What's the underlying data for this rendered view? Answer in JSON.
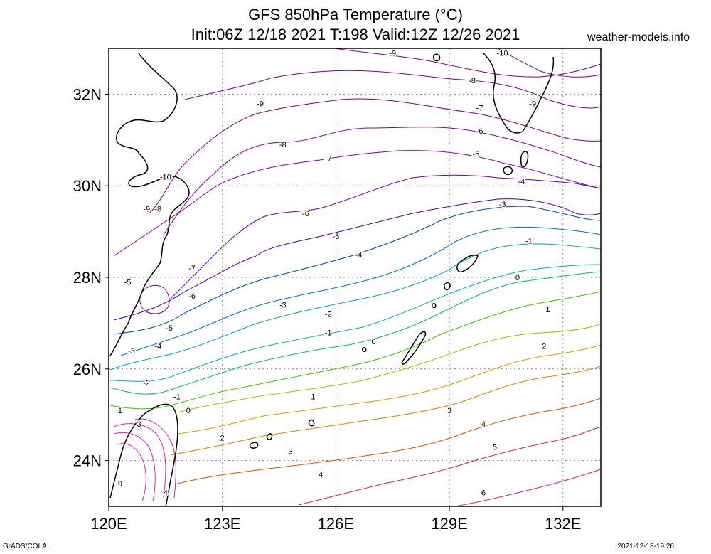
{
  "title": {
    "line1": "GFS 850hPa Temperature (°C)",
    "line2": "Init:06Z 12/18 2021 T:198 Valid:12Z 12/26 2021"
  },
  "site": "weather-models.info",
  "footer": {
    "left": "GrADS/COLA",
    "right": "2021-12-18-19:26"
  },
  "map": {
    "lon_range": [
      120,
      133
    ],
    "lat_range": [
      23,
      33
    ],
    "lon_ticks": [
      "120E",
      "123E",
      "126E",
      "129E",
      "132E"
    ],
    "lat_ticks": [
      "24N",
      "26N",
      "28N",
      "30N",
      "32N"
    ],
    "grid": "dotted",
    "contour_interval_c": 1,
    "contour_labels": [
      {
        "text": "-9",
        "lon": 127.5,
        "lat": 32.9
      },
      {
        "text": "-10",
        "lon": 130.4,
        "lat": 32.9
      },
      {
        "text": "-8",
        "lon": 129.6,
        "lat": 32.3
      },
      {
        "text": "-9",
        "lon": 131.2,
        "lat": 31.8
      },
      {
        "text": "-9",
        "lon": 124.0,
        "lat": 31.8
      },
      {
        "text": "-7",
        "lon": 129.8,
        "lat": 31.7
      },
      {
        "text": "-6",
        "lon": 129.8,
        "lat": 31.2
      },
      {
        "text": "-8",
        "lon": 124.6,
        "lat": 30.9
      },
      {
        "text": "-5",
        "lon": 129.7,
        "lat": 30.7
      },
      {
        "text": "-7",
        "lon": 125.8,
        "lat": 30.6
      },
      {
        "text": "-10",
        "lon": 121.5,
        "lat": 30.2
      },
      {
        "text": "-4",
        "lon": 130.9,
        "lat": 30.1
      },
      {
        "text": "-3",
        "lon": 130.4,
        "lat": 29.6
      },
      {
        "text": "-9",
        "lon": 121.0,
        "lat": 29.5
      },
      {
        "text": "-8",
        "lon": 121.3,
        "lat": 29.5
      },
      {
        "text": "-6",
        "lon": 125.2,
        "lat": 29.4
      },
      {
        "text": "-5",
        "lon": 126.0,
        "lat": 28.9
      },
      {
        "text": "-1",
        "lon": 131.1,
        "lat": 28.8
      },
      {
        "text": "-4",
        "lon": 126.6,
        "lat": 28.5
      },
      {
        "text": "-7",
        "lon": 122.2,
        "lat": 28.2
      },
      {
        "text": "0",
        "lon": 130.8,
        "lat": 28.0
      },
      {
        "text": "-5",
        "lon": 120.5,
        "lat": 27.9
      },
      {
        "text": "-6",
        "lon": 122.2,
        "lat": 27.6
      },
      {
        "text": "-3",
        "lon": 124.6,
        "lat": 27.4
      },
      {
        "text": "1",
        "lon": 131.6,
        "lat": 27.3
      },
      {
        "text": "-2",
        "lon": 125.8,
        "lat": 27.2
      },
      {
        "text": "-5",
        "lon": 121.6,
        "lat": 26.9
      },
      {
        "text": "-1",
        "lon": 125.8,
        "lat": 26.8
      },
      {
        "text": "0",
        "lon": 127.0,
        "lat": 26.6
      },
      {
        "text": "2",
        "lon": 131.5,
        "lat": 26.5
      },
      {
        "text": "-4",
        "lon": 121.3,
        "lat": 26.5
      },
      {
        "text": "-3",
        "lon": 120.6,
        "lat": 26.4
      },
      {
        "text": "-2",
        "lon": 121.0,
        "lat": 25.7
      },
      {
        "text": "-1",
        "lon": 121.8,
        "lat": 25.4
      },
      {
        "text": "1",
        "lon": 125.4,
        "lat": 25.4
      },
      {
        "text": "0",
        "lon": 122.1,
        "lat": 25.1
      },
      {
        "text": "3",
        "lon": 129.0,
        "lat": 25.1
      },
      {
        "text": "1",
        "lon": 120.3,
        "lat": 25.1
      },
      {
        "text": "4",
        "lon": 129.9,
        "lat": 24.8
      },
      {
        "text": "3",
        "lon": 120.8,
        "lat": 24.8
      },
      {
        "text": "2",
        "lon": 123.0,
        "lat": 24.5
      },
      {
        "text": "5",
        "lon": 130.2,
        "lat": 24.3
      },
      {
        "text": "3",
        "lon": 124.8,
        "lat": 24.2
      },
      {
        "text": "4",
        "lon": 125.6,
        "lat": 23.7
      },
      {
        "text": "9",
        "lon": 120.3,
        "lat": 23.5
      },
      {
        "text": "4",
        "lon": 121.5,
        "lat": 23.3
      },
      {
        "text": "6",
        "lon": 129.9,
        "lat": 23.3
      }
    ]
  }
}
